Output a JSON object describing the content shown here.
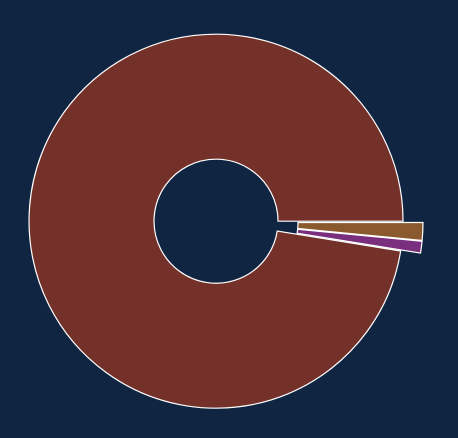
{
  "chart_data": {
    "type": "pie",
    "variant": "donut",
    "exploded": true,
    "background": "#0f2541",
    "stroke_color": "#ffffff",
    "start_angle_deg": 0,
    "direction": "clockwise",
    "slices": [
      {
        "value": 1.5,
        "color": "#8a5a2e"
      },
      {
        "value": 1.0,
        "color": "#7a2f7e"
      },
      {
        "value": 95.5,
        "color": "#74312a"
      }
    ],
    "legend": "none",
    "labels": "none"
  }
}
